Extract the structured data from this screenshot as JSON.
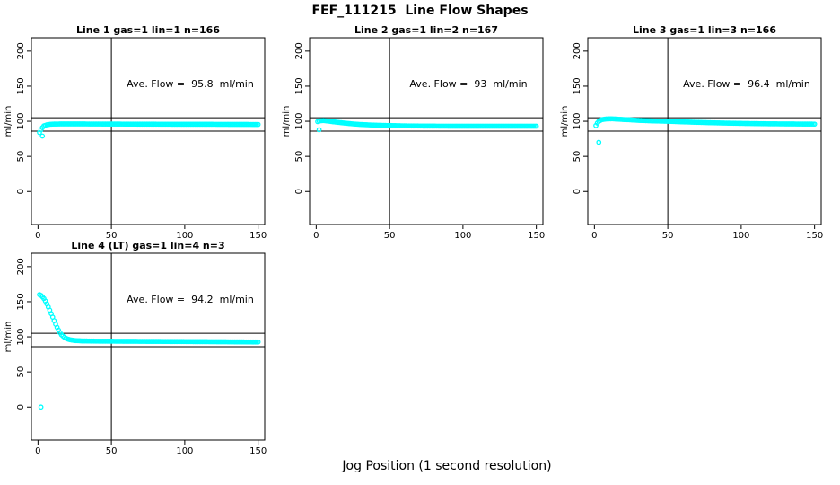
{
  "page": {
    "title": "FEF_111215  Line Flow Shapes",
    "xlabel_bottom": "Jog Position (1 second resolution)"
  },
  "colors": {
    "marker": "#00FFFF",
    "axis": "#000000",
    "background": "#FFFFFF"
  },
  "chart_data": [
    {
      "type": "scatter",
      "title": "Line 1 gas=1 lin=1 n=166",
      "ylabel": "ml/min",
      "xlabel": "",
      "annotation": "Ave. Flow =  95.8  ml/min",
      "x_ticks": [
        0,
        50,
        100,
        150
      ],
      "y_ticks": [
        0,
        50,
        100,
        150,
        200
      ],
      "xlim": [
        -4.5,
        154.5
      ],
      "ylim": [
        -47,
        219
      ],
      "ref_hlines": [
        105,
        86
      ],
      "ref_vlines": [
        50
      ],
      "marker": "circle-open",
      "x_step": 1,
      "curve_keypoints": [
        [
          1,
          84
        ],
        [
          2,
          88
        ],
        [
          3,
          91
        ],
        [
          4,
          93.5
        ],
        [
          6,
          95
        ],
        [
          8,
          95.7
        ],
        [
          10,
          96
        ],
        [
          15,
          96.2
        ],
        [
          30,
          96.2
        ],
        [
          60,
          96
        ],
        [
          90,
          95.8
        ],
        [
          120,
          95.7
        ],
        [
          150,
          95.5
        ]
      ],
      "outlier_points": [
        [
          3,
          79
        ]
      ]
    },
    {
      "type": "scatter",
      "title": "Line 2 gas=1 lin=2 n=167",
      "ylabel": "ml/min",
      "xlabel": "",
      "annotation": "Ave. Flow =  93  ml/min",
      "x_ticks": [
        0,
        50,
        100,
        150
      ],
      "y_ticks": [
        0,
        50,
        100,
        150,
        200
      ],
      "xlim": [
        -4.5,
        154.5
      ],
      "ylim": [
        -47,
        219
      ],
      "ref_hlines": [
        105,
        86
      ],
      "ref_vlines": [
        50
      ],
      "marker": "circle-open",
      "x_step": 1,
      "curve_keypoints": [
        [
          1,
          99.5
        ],
        [
          3,
          100.8
        ],
        [
          5,
          101
        ],
        [
          8,
          100.3
        ],
        [
          12,
          99.2
        ],
        [
          16,
          98.2
        ],
        [
          20,
          97.3
        ],
        [
          25,
          96.3
        ],
        [
          30,
          95.5
        ],
        [
          40,
          94.5
        ],
        [
          50,
          94
        ],
        [
          60,
          93.5
        ],
        [
          75,
          93.2
        ],
        [
          100,
          93
        ],
        [
          150,
          93
        ]
      ],
      "outlier_points": [
        [
          2,
          88
        ]
      ]
    },
    {
      "type": "scatter",
      "title": "Line 3 gas=1 lin=3 n=166",
      "ylabel": "ml/min",
      "xlabel": "",
      "annotation": "Ave. Flow =  96.4  ml/min",
      "x_ticks": [
        0,
        50,
        100,
        150
      ],
      "y_ticks": [
        0,
        50,
        100,
        150,
        200
      ],
      "xlim": [
        -4.5,
        154.5
      ],
      "ylim": [
        -47,
        219
      ],
      "ref_hlines": [
        105,
        86
      ],
      "ref_vlines": [
        50
      ],
      "marker": "circle-open",
      "x_step": 1,
      "curve_keypoints": [
        [
          1,
          94
        ],
        [
          2,
          97.5
        ],
        [
          3,
          100
        ],
        [
          5,
          102.3
        ],
        [
          8,
          103.3
        ],
        [
          12,
          103.5
        ],
        [
          16,
          103
        ],
        [
          20,
          102.5
        ],
        [
          25,
          102
        ],
        [
          30,
          101.3
        ],
        [
          40,
          100.5
        ],
        [
          50,
          100
        ],
        [
          60,
          99.2
        ],
        [
          70,
          98.5
        ],
        [
          80,
          97.9
        ],
        [
          90,
          97.4
        ],
        [
          100,
          97
        ],
        [
          120,
          96.4
        ],
        [
          150,
          96
        ]
      ],
      "outlier_points": [
        [
          3,
          70
        ]
      ]
    },
    {
      "type": "scatter",
      "title": "Line 4 (LT) gas=1 lin=4 n=3",
      "ylabel": "ml/min",
      "xlabel": "",
      "annotation": "Ave. Flow =  94.2  ml/min",
      "x_ticks": [
        0,
        50,
        100,
        150
      ],
      "y_ticks": [
        0,
        50,
        100,
        150,
        200
      ],
      "xlim": [
        -4.5,
        154.5
      ],
      "ylim": [
        -47,
        219
      ],
      "ref_hlines": [
        105,
        86
      ],
      "ref_vlines": [
        50
      ],
      "marker": "circle-open",
      "x_step": 1,
      "curve_keypoints": [
        [
          1,
          160
        ],
        [
          2,
          159
        ],
        [
          3,
          157
        ],
        [
          4,
          154.5
        ],
        [
          5,
          151
        ],
        [
          6,
          147
        ],
        [
          7,
          142.5
        ],
        [
          8,
          138
        ],
        [
          9,
          133
        ],
        [
          10,
          128
        ],
        [
          11,
          123
        ],
        [
          12,
          118
        ],
        [
          13,
          113.5
        ],
        [
          14,
          109.5
        ],
        [
          15,
          106
        ],
        [
          16,
          103
        ],
        [
          17,
          101
        ],
        [
          18,
          99.3
        ],
        [
          19,
          98
        ],
        [
          20,
          97
        ],
        [
          22,
          95.8
        ],
        [
          25,
          94.8
        ],
        [
          30,
          94.2
        ],
        [
          40,
          93.9
        ],
        [
          60,
          93.7
        ],
        [
          80,
          93.5
        ],
        [
          100,
          93.3
        ],
        [
          120,
          93.1
        ],
        [
          150,
          92.7
        ]
      ],
      "outlier_points": [
        [
          2,
          0
        ]
      ]
    }
  ]
}
